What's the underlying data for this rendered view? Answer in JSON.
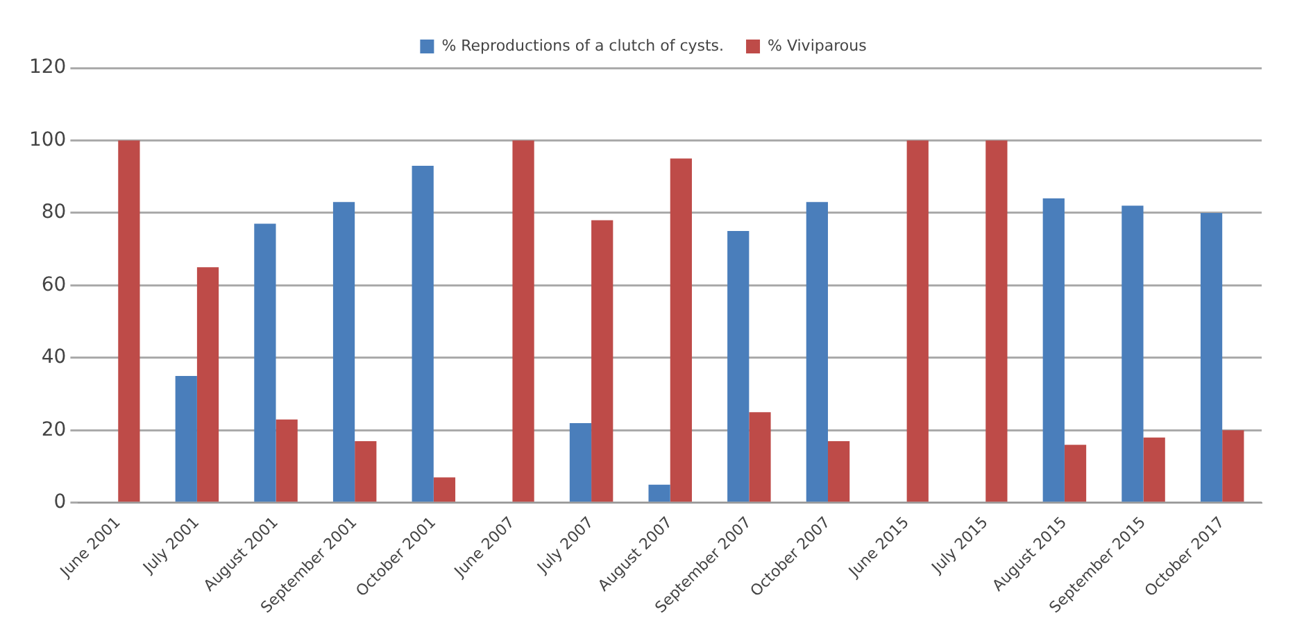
{
  "chart_data": {
    "type": "bar",
    "categories": [
      "June 2001",
      "July 2001",
      "August 2001",
      "September 2001",
      "October 2001",
      "June 2007",
      "July 2007",
      "August 2007",
      "September 2007",
      "October 2007",
      "June 2015",
      "July 2015",
      "August 2015",
      "September 2015",
      "October 2017"
    ],
    "series": [
      {
        "name": "% Reproductions of a clutch of cysts.",
        "color": "#4a7ebb",
        "values": [
          0,
          35,
          77,
          83,
          93,
          0,
          22,
          5,
          75,
          83,
          0,
          0,
          84,
          82,
          80
        ]
      },
      {
        "name": "% Viviparous",
        "color": "#be4b48",
        "values": [
          100,
          65,
          23,
          17,
          7,
          100,
          78,
          95,
          25,
          17,
          100,
          100,
          16,
          18,
          20
        ]
      }
    ],
    "ylim": [
      0,
      120
    ],
    "yticks": [
      0,
      20,
      40,
      60,
      80,
      100,
      120
    ],
    "grid": "y",
    "legend": "top"
  }
}
